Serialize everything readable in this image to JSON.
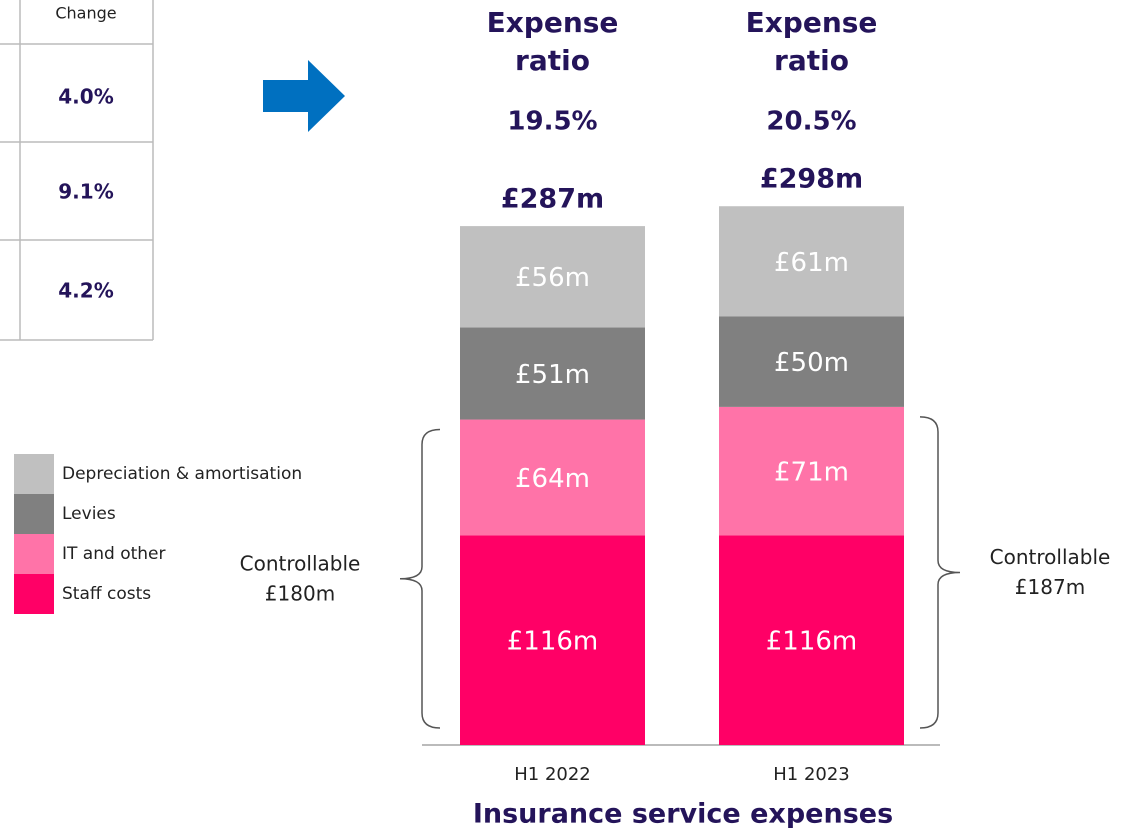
{
  "table": {
    "header": [
      "Change"
    ],
    "rows": [
      [
        "4.0%"
      ],
      [
        "9.1%"
      ],
      [
        "4.2%"
      ]
    ]
  },
  "chart_data": {
    "type": "stacked_bar",
    "title": "Insurance service expenses",
    "categories": [
      "H1 2022",
      "H1 2023"
    ],
    "series": [
      {
        "name": "Staff costs",
        "color": "#ff0066",
        "values": [
          116,
          116
        ],
        "value_labels": [
          "£116m",
          "£116m"
        ]
      },
      {
        "name": "IT and other",
        "color": "#ff73a8",
        "values": [
          64,
          71
        ],
        "value_labels": [
          "£64m",
          "£71m"
        ]
      },
      {
        "name": "Levies",
        "color": "#808080",
        "values": [
          51,
          50
        ],
        "value_labels": [
          "£51m",
          "£50m"
        ]
      },
      {
        "name": "Depreciation & amortisation",
        "color": "#c0c0c0",
        "values": [
          56,
          61
        ],
        "value_labels": [
          "£56m",
          "£61m"
        ]
      }
    ],
    "totals": {
      "values": [
        287,
        298
      ],
      "value_labels": [
        "£287m",
        "£298m"
      ]
    },
    "ratio_title": "Expense ratio",
    "expense_ratios": {
      "values": [
        19.5,
        20.5
      ],
      "value_labels": [
        "19.5%",
        "20.5%"
      ]
    },
    "controllable": {
      "label": "Controllable",
      "values": [
        180,
        187
      ],
      "value_labels": [
        "£180m",
        "£187m"
      ]
    }
  }
}
